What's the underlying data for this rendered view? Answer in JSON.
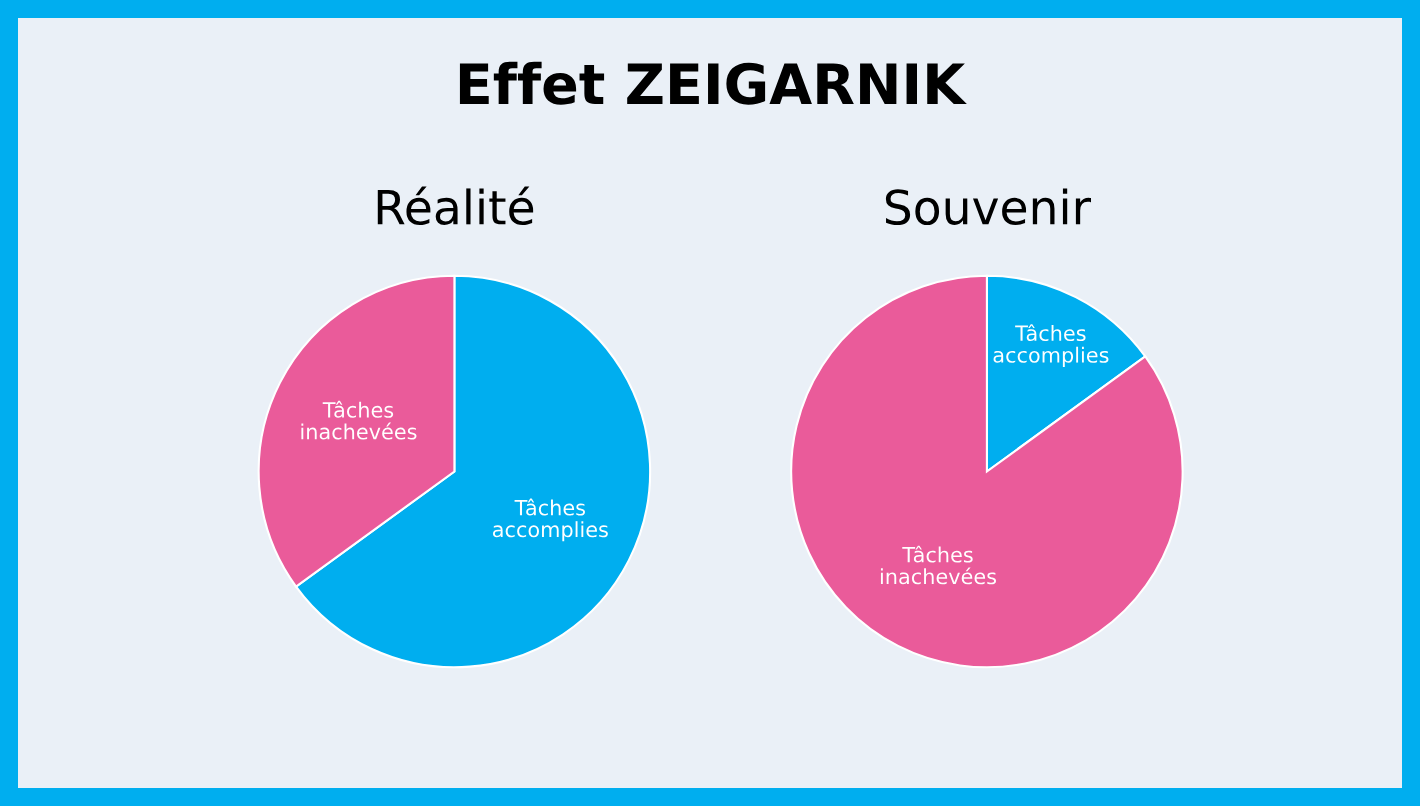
{
  "chart_data": [
    {
      "type": "other",
      "title": "Effet ZEIGARNIK"
    },
    {
      "type": "pie",
      "title": "Réalité",
      "categories": [
        "Tâches accomplies",
        "Tâches inachevées"
      ],
      "values": [
        65,
        35
      ],
      "colors": [
        "#00aeef",
        "#ea5b9a"
      ]
    },
    {
      "type": "pie",
      "title": "Souvenir",
      "categories": [
        "Tâches accomplies",
        "Tâches inachevées"
      ],
      "values": [
        15,
        85
      ],
      "colors": [
        "#00aeef",
        "#ea5b9a"
      ]
    }
  ]
}
